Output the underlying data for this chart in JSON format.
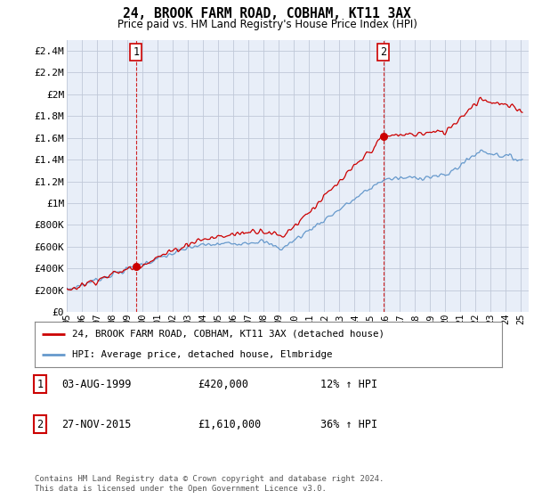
{
  "title": "24, BROOK FARM ROAD, COBHAM, KT11 3AX",
  "subtitle": "Price paid vs. HM Land Registry's House Price Index (HPI)",
  "legend_label_red": "24, BROOK FARM ROAD, COBHAM, KT11 3AX (detached house)",
  "legend_label_blue": "HPI: Average price, detached house, Elmbridge",
  "footnote": "Contains HM Land Registry data © Crown copyright and database right 2024.\nThis data is licensed under the Open Government Licence v3.0.",
  "table": [
    {
      "num": "1",
      "date": "03-AUG-1999",
      "price": "£420,000",
      "hpi": "12% ↑ HPI"
    },
    {
      "num": "2",
      "date": "27-NOV-2015",
      "price": "£1,610,000",
      "hpi": "36% ↑ HPI"
    }
  ],
  "sale1_year": 1999.58,
  "sale1_price": 420000,
  "sale2_year": 2015.9,
  "sale2_price": 1610000,
  "ylim": [
    0,
    2500000
  ],
  "yticks": [
    0,
    200000,
    400000,
    600000,
    800000,
    1000000,
    1200000,
    1400000,
    1600000,
    1800000,
    2000000,
    2200000,
    2400000
  ],
  "ytick_labels": [
    "£0",
    "£200K",
    "£400K",
    "£600K",
    "£800K",
    "£1M",
    "£1.2M",
    "£1.4M",
    "£1.6M",
    "£1.8M",
    "£2M",
    "£2.2M",
    "£2.4M"
  ],
  "color_red": "#CC0000",
  "color_blue": "#6699CC",
  "grid_color": "#C0C8D8",
  "bg_color": "#FFFFFF",
  "plot_bg_color": "#E8EEF8"
}
